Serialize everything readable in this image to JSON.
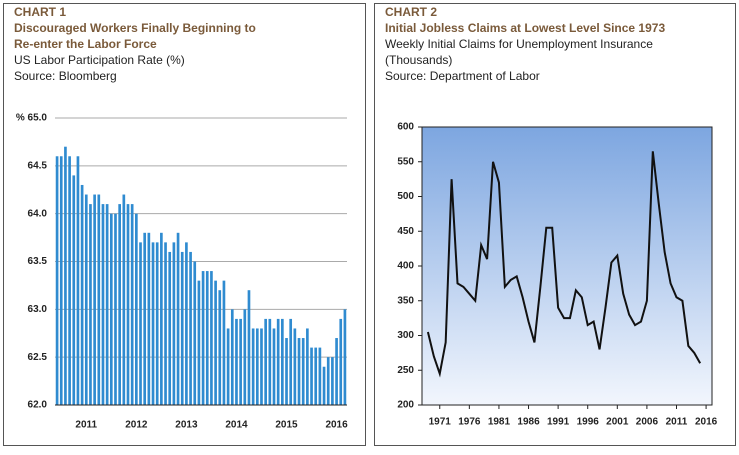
{
  "chart_data": [
    {
      "type": "bar",
      "label": "CHART 1",
      "title": [
        "Discouraged Workers Finally Beginning to",
        "Re-enter the Labor Force"
      ],
      "subtitle": [
        "US Labor Participation Rate (%)",
        "Source: Bloomberg"
      ],
      "categories": [
        null,
        null,
        null,
        null,
        null,
        null,
        null,
        "2011",
        null,
        null,
        null,
        null,
        null,
        null,
        null,
        null,
        null,
        null,
        null,
        "2012",
        null,
        null,
        null,
        null,
        null,
        null,
        null,
        null,
        null,
        null,
        null,
        "2013",
        null,
        null,
        null,
        null,
        null,
        null,
        null,
        null,
        null,
        null,
        null,
        "2014",
        null,
        null,
        null,
        null,
        null,
        null,
        null,
        null,
        null,
        null,
        null,
        "2015",
        null,
        null,
        null,
        null,
        null,
        null,
        null,
        null,
        null,
        null,
        null,
        "2016",
        null,
        null
      ],
      "values": [
        64.6,
        64.6,
        64.7,
        64.6,
        64.4,
        64.6,
        64.3,
        64.2,
        64.1,
        64.2,
        64.2,
        64.1,
        64.1,
        64.0,
        64.0,
        64.1,
        64.2,
        64.1,
        64.1,
        64.0,
        63.7,
        63.8,
        63.8,
        63.7,
        63.7,
        63.8,
        63.7,
        63.6,
        63.7,
        63.8,
        63.6,
        63.7,
        63.6,
        63.5,
        63.3,
        63.4,
        63.4,
        63.4,
        63.3,
        63.2,
        63.3,
        62.8,
        63.0,
        62.9,
        62.9,
        63.0,
        63.2,
        62.8,
        62.8,
        62.8,
        62.9,
        62.9,
        62.8,
        62.9,
        62.9,
        62.7,
        62.9,
        62.8,
        62.7,
        62.7,
        62.8,
        62.6,
        62.6,
        62.6,
        62.4,
        62.5,
        62.5,
        62.7,
        62.9,
        63.0
      ],
      "color": "#2f8bd0",
      "ylim": [
        62.0,
        65.0
      ],
      "yticks": [
        {
          "value": 62.0,
          "label": "62.0"
        },
        {
          "value": 62.5,
          "label": "62.5"
        },
        {
          "value": 63.0,
          "label": "63.0"
        },
        {
          "value": 63.5,
          "label": "63.5"
        },
        {
          "value": 64.0,
          "label": "64.0"
        },
        {
          "value": 64.5,
          "label": "64.5"
        },
        {
          "value": 65.0,
          "label": "% 65.0"
        }
      ],
      "grid": true
    },
    {
      "type": "line",
      "label": "CHART 2",
      "title": [
        "Initial Jobless Claims at Lowest Level Since 1973"
      ],
      "subtitle": [
        "Weekly Initial Claims for Unemployment Insurance",
        "(Thousands)",
        "Source: Department of Labor"
      ],
      "x": [
        1969,
        1970,
        1971,
        1972,
        1973,
        1974,
        1975,
        1976,
        1977,
        1978,
        1979,
        1980,
        1981,
        1982,
        1983,
        1984,
        1985,
        1986,
        1987,
        1988,
        1989,
        1990,
        1991,
        1992,
        1993,
        1994,
        1995,
        1996,
        1997,
        1998,
        1999,
        2000,
        2001,
        2002,
        2003,
        2004,
        2005,
        2006,
        2007,
        2008,
        2009,
        2010,
        2011,
        2012,
        2013,
        2014,
        2015
      ],
      "values": [
        305,
        270,
        245,
        290,
        525,
        375,
        370,
        360,
        350,
        430,
        410,
        550,
        520,
        370,
        380,
        385,
        355,
        320,
        290,
        370,
        455,
        455,
        340,
        325,
        325,
        365,
        355,
        315,
        320,
        280,
        340,
        405,
        415,
        360,
        330,
        315,
        320,
        350,
        565,
        490,
        420,
        375,
        355,
        350,
        285,
        275,
        260
      ],
      "color": "#111111",
      "xlim": [
        1968,
        2017
      ],
      "xticks": [
        1971,
        1976,
        1981,
        1986,
        1991,
        1996,
        2001,
        2006,
        2011,
        2016
      ],
      "ylim": [
        200,
        600
      ],
      "yticks": [
        200,
        250,
        300,
        350,
        400,
        450,
        500,
        550,
        600
      ],
      "grid": false
    }
  ]
}
